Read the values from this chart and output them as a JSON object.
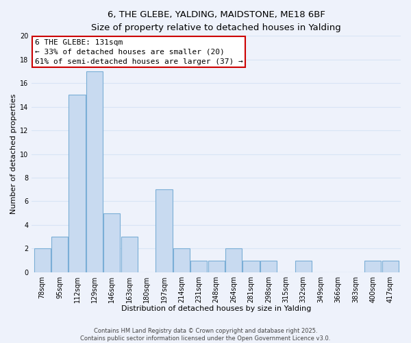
{
  "title": "6, THE GLEBE, YALDING, MAIDSTONE, ME18 6BF",
  "subtitle": "Size of property relative to detached houses in Yalding",
  "xlabel": "Distribution of detached houses by size in Yalding",
  "ylabel": "Number of detached properties",
  "bin_labels": [
    "78sqm",
    "95sqm",
    "112sqm",
    "129sqm",
    "146sqm",
    "163sqm",
    "180sqm",
    "197sqm",
    "214sqm",
    "231sqm",
    "248sqm",
    "264sqm",
    "281sqm",
    "298sqm",
    "315sqm",
    "332sqm",
    "349sqm",
    "366sqm",
    "383sqm",
    "400sqm",
    "417sqm"
  ],
  "bar_values": [
    2,
    3,
    15,
    17,
    5,
    3,
    0,
    7,
    2,
    1,
    1,
    2,
    1,
    1,
    0,
    1,
    0,
    0,
    0,
    1,
    1
  ],
  "bar_color": "#c8daf0",
  "bar_edge_color": "#7aaed6",
  "background_color": "#eef2fb",
  "grid_color": "#d8e4f5",
  "ylim": [
    0,
    20
  ],
  "yticks": [
    0,
    2,
    4,
    6,
    8,
    10,
    12,
    14,
    16,
    18,
    20
  ],
  "annotation_line1": "6 THE GLEBE: 131sqm",
  "annotation_line2": "← 33% of detached houses are smaller (20)",
  "annotation_line3": "61% of semi-detached houses are larger (37) →",
  "annotation_box_color": "#ffffff",
  "annotation_box_edge_color": "#cc0000",
  "footnote": "Contains HM Land Registry data © Crown copyright and database right 2025.\nContains public sector information licensed under the Open Government Licence v3.0.",
  "title_fontsize": 9.5,
  "subtitle_fontsize": 9,
  "axis_label_fontsize": 8,
  "tick_fontsize": 7,
  "annotation_fontsize": 8,
  "footnote_fontsize": 6
}
